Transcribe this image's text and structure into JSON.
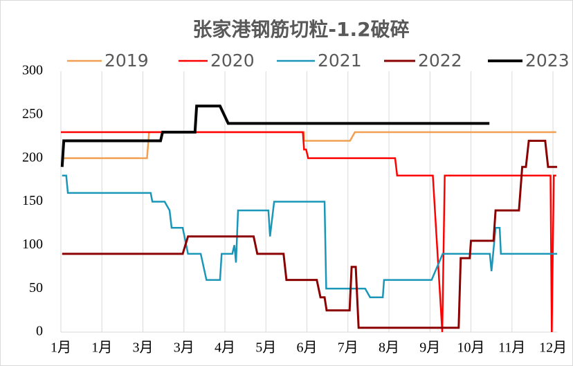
{
  "chart_data": {
    "type": "line",
    "title": "张家港钢筋切粒-1.2破碎",
    "xlim": [
      0,
      12.1
    ],
    "xticks": [
      {
        "value": 0,
        "label": "1月"
      },
      {
        "value": 1,
        "label": "1月"
      },
      {
        "value": 2,
        "label": "3月"
      },
      {
        "value": 3,
        "label": "3月"
      },
      {
        "value": 4,
        "label": "4月"
      },
      {
        "value": 5,
        "label": "5月"
      },
      {
        "value": 6,
        "label": "6月"
      },
      {
        "value": 7,
        "label": "7月"
      },
      {
        "value": 8,
        "label": "8月"
      },
      {
        "value": 9,
        "label": "9月"
      },
      {
        "value": 10,
        "label": "10月"
      },
      {
        "value": 11,
        "label": "11月"
      },
      {
        "value": 12,
        "label": "12月"
      }
    ],
    "ylim": [
      0,
      300
    ],
    "yticks": [
      0,
      50,
      100,
      150,
      200,
      250,
      300
    ],
    "xgrid": true,
    "legend": "top",
    "series": [
      {
        "name": "2019",
        "color": "#f0a050",
        "width": 2.5,
        "x": [
          0.03,
          2.1,
          2.15,
          5.93,
          5.93,
          7.05,
          7.17,
          12.08
        ],
        "values": [
          200,
          200,
          230,
          230,
          220,
          220,
          230,
          230
        ]
      },
      {
        "name": "2020",
        "color": "#ff0000",
        "width": 2.5,
        "x": [
          0,
          5.9,
          5.93,
          5.98,
          6.03,
          8.15,
          8.2,
          9.07,
          9.3,
          9.36,
          11.94,
          11.97,
          12.02,
          12.08
        ],
        "values": [
          230,
          230,
          210,
          210,
          200,
          200,
          180,
          180,
          0,
          180,
          180,
          0,
          180,
          180
        ]
      },
      {
        "name": "2021",
        "color": "#1a96b8",
        "width": 2.5,
        "x": [
          0.03,
          0.13,
          0.17,
          2.19,
          2.23,
          2.53,
          2.65,
          2.7,
          2.97,
          3.1,
          3.41,
          3.55,
          3.88,
          3.92,
          4.18,
          4.23,
          4.27,
          4.32,
          5.06,
          5.1,
          5.2,
          6.43,
          6.47,
          7.42,
          7.54,
          7.85,
          7.88,
          9.04,
          9.31,
          10.46,
          10.5,
          10.6,
          10.7,
          10.73,
          12.1
        ],
        "values": [
          180,
          180,
          160,
          160,
          150,
          150,
          140,
          120,
          120,
          90,
          90,
          60,
          60,
          90,
          90,
          100,
          80,
          140,
          140,
          110,
          150,
          150,
          50,
          50,
          40,
          40,
          60,
          60,
          90,
          90,
          70,
          120,
          120,
          90,
          90
        ]
      },
      {
        "name": "2022",
        "color": "#8b0000",
        "width": 3,
        "x": [
          0.03,
          2.97,
          3.1,
          4.7,
          4.79,
          5.43,
          5.5,
          6.24,
          6.33,
          6.43,
          6.48,
          7.04,
          7.09,
          7.19,
          7.26,
          9.7,
          9.75,
          9.97,
          10.0,
          10.55,
          10.6,
          11.17,
          11.25,
          11.34,
          11.41,
          11.81,
          11.88,
          12.1
        ],
        "values": [
          90,
          90,
          110,
          110,
          90,
          90,
          60,
          60,
          40,
          40,
          25,
          25,
          75,
          75,
          5,
          5,
          85,
          85,
          105,
          105,
          140,
          140,
          190,
          190,
          220,
          220,
          190,
          190
        ]
      },
      {
        "name": "2023",
        "color": "#000000",
        "width": 4,
        "x": [
          0.03,
          0.07,
          2.43,
          2.48,
          3.27,
          3.31,
          3.88,
          4.08,
          10.45
        ],
        "values": [
          190,
          220,
          220,
          230,
          230,
          260,
          260,
          240,
          240
        ]
      }
    ]
  }
}
